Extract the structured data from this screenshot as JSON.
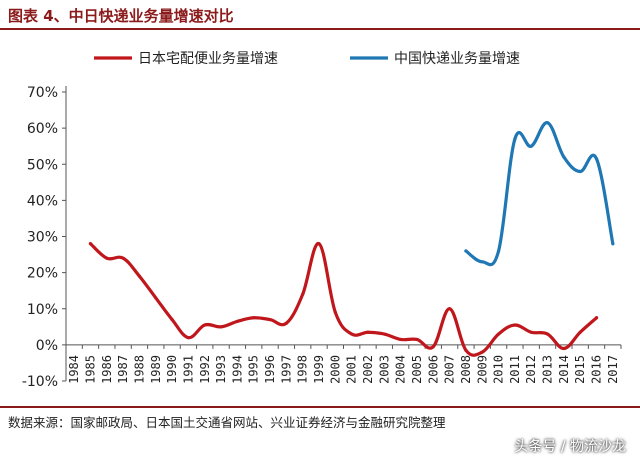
{
  "header": {
    "title": "图表 4、中日快递业务量增速对比"
  },
  "footer": {
    "source": "数据来源：国家邮政局、日本国土交通省网站、兴业证券经济与金融研究院整理",
    "watermark": "头条号 / 物流沙龙"
  },
  "colors": {
    "japan": "#C0171C",
    "china": "#1F77B4",
    "title": "#8B1A1A"
  },
  "chart_data": {
    "type": "line",
    "title": "",
    "xlabel": "",
    "ylabel": "",
    "ylim": [
      -10,
      70
    ],
    "yticks": [
      "70%",
      "60%",
      "50%",
      "40%",
      "30%",
      "20%",
      "10%",
      "0%",
      "-10%"
    ],
    "ytick_values": [
      70,
      60,
      50,
      40,
      30,
      20,
      10,
      0,
      -10
    ],
    "categories": [
      "1984",
      "1985",
      "1986",
      "1987",
      "1988",
      "1989",
      "1990",
      "1991",
      "1992",
      "1993",
      "1994",
      "1995",
      "1996",
      "1997",
      "1998",
      "1999",
      "2000",
      "2001",
      "2002",
      "2003",
      "2004",
      "2005",
      "2006",
      "2007",
      "2008",
      "2009",
      "2010",
      "2011",
      "2012",
      "2013",
      "2014",
      "2015",
      "2016",
      "2017"
    ],
    "legend": "top",
    "grid": false,
    "series": [
      {
        "name": "日本宅配便业务量增速",
        "color": "#C0171C",
        "x": [
          "1985",
          "1986",
          "1987",
          "1988",
          "1989",
          "1990",
          "1991",
          "1992",
          "1993",
          "1994",
          "1995",
          "1996",
          "1997",
          "1998",
          "1999",
          "2000",
          "2001",
          "2002",
          "2003",
          "2004",
          "2005",
          "2006",
          "2007",
          "2008",
          "2009",
          "2010",
          "2011",
          "2012",
          "2013",
          "2014",
          "2015",
          "2016"
        ],
        "values": [
          28,
          24,
          24,
          19,
          13,
          7,
          2,
          5.5,
          5,
          6.5,
          7.5,
          7,
          6,
          14,
          28,
          9,
          3,
          3.5,
          3,
          1.5,
          1.5,
          -0.5,
          10,
          -1.5,
          -2,
          3,
          5.5,
          3.5,
          3,
          -1,
          3.5,
          7.5
        ]
      },
      {
        "name": "中国快递业务量增速",
        "color": "#1F77B4",
        "x": [
          "2008",
          "2009",
          "2010",
          "2011",
          "2012",
          "2013",
          "2014",
          "2015",
          "2016",
          "2017"
        ],
        "values": [
          26,
          23,
          26,
          57,
          55,
          61.5,
          52,
          48,
          51.5,
          28
        ]
      }
    ]
  }
}
